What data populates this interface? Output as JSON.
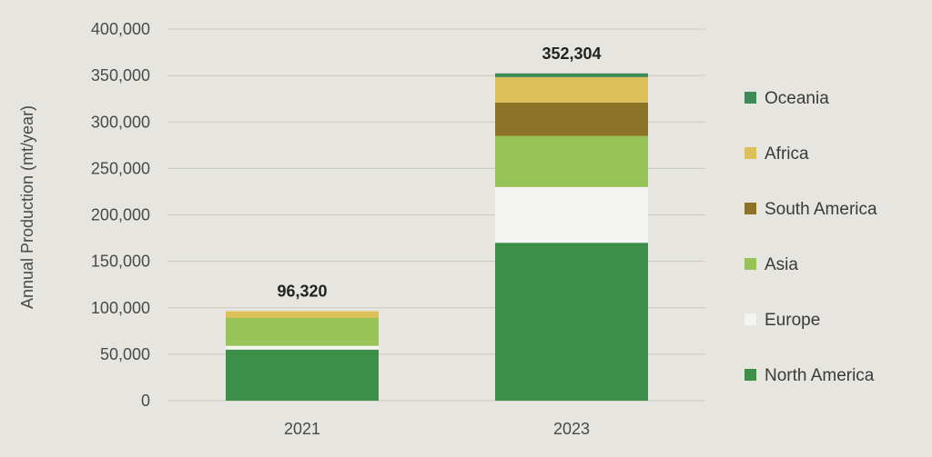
{
  "chart_data": {
    "type": "bar",
    "stacked": true,
    "title": "",
    "xlabel": "",
    "ylabel": "Annual Production (mt/year)",
    "ylim": [
      0,
      400000
    ],
    "yticks": [
      0,
      50000,
      100000,
      150000,
      200000,
      250000,
      300000,
      350000,
      400000
    ],
    "ytick_labels": [
      "0",
      "50,000",
      "100,000",
      "150,000",
      "200,000",
      "250,000",
      "300,000",
      "350,000",
      "400,000"
    ],
    "grid": true,
    "legend_position": "right",
    "categories": [
      "2021",
      "2023"
    ],
    "totals": [
      96320,
      352304
    ],
    "total_labels": [
      "96,320",
      "352,304"
    ],
    "series": [
      {
        "name": "North America",
        "color": "#3e8f4a",
        "values": [
          55000,
          170000
        ]
      },
      {
        "name": "Europe",
        "color": "#f4f4f2",
        "values": [
          4000,
          60000
        ]
      },
      {
        "name": "Asia",
        "color": "#97c459",
        "values": [
          30000,
          55000
        ]
      },
      {
        "name": "South America",
        "color": "#8d7327",
        "values": [
          0,
          36000
        ]
      },
      {
        "name": "Africa",
        "color": "#dcc15a",
        "values": [
          7320,
          27304
        ]
      },
      {
        "name": "Oceania",
        "color": "#3c8a55",
        "values": [
          0,
          4000
        ]
      }
    ]
  }
}
